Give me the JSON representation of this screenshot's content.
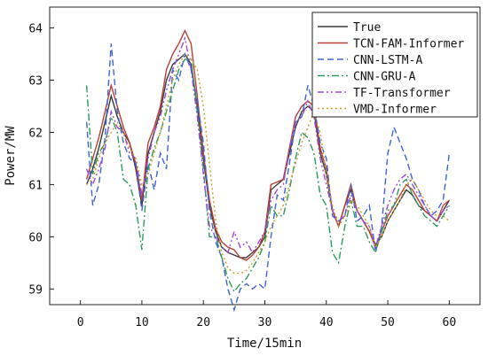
{
  "chart_data": {
    "type": "line",
    "title": "",
    "xlabel": "Time/15min",
    "ylabel": "Power/MW",
    "xlim": [
      -5,
      65
    ],
    "ylim": [
      58.7,
      64.4
    ],
    "xticks": [
      0,
      10,
      20,
      30,
      40,
      50,
      60
    ],
    "yticks": [
      59,
      60,
      61,
      62,
      63,
      64
    ],
    "legend_position": "top-right",
    "grid": false,
    "series": [
      {
        "name": "True",
        "color": "#3a3a3a",
        "dash": "solid",
        "x": [
          1,
          2,
          3,
          4,
          5,
          6,
          7,
          8,
          9,
          10,
          11,
          12,
          13,
          14,
          15,
          16,
          17,
          18,
          19,
          20,
          21,
          22,
          23,
          24,
          25,
          26,
          27,
          28,
          29,
          30,
          31,
          32,
          33,
          34,
          35,
          36,
          37,
          38,
          39,
          40,
          41,
          42,
          43,
          44,
          45,
          46,
          47,
          48,
          49,
          50,
          51,
          52,
          53,
          54,
          55,
          56,
          57,
          58,
          59,
          60
        ],
        "y": [
          61.0,
          61.3,
          61.7,
          62.2,
          62.7,
          62.3,
          62.0,
          61.8,
          61.3,
          60.6,
          61.6,
          62.0,
          62.4,
          63.0,
          63.3,
          63.4,
          63.5,
          63.3,
          62.5,
          61.5,
          60.6,
          60.1,
          59.8,
          59.7,
          59.65,
          59.6,
          59.6,
          59.7,
          59.8,
          60.0,
          60.9,
          61.0,
          61.1,
          61.6,
          62.1,
          62.4,
          62.5,
          62.4,
          61.6,
          61.2,
          60.5,
          60.2,
          60.6,
          60.9,
          60.5,
          60.3,
          60.1,
          59.85,
          60.0,
          60.3,
          60.5,
          60.7,
          60.9,
          60.8,
          60.6,
          60.5,
          60.4,
          60.3,
          60.5,
          60.7
        ]
      },
      {
        "name": "TCN-FAM-Informer",
        "color": "#b5413a",
        "dash": "solid",
        "x": [
          1,
          2,
          3,
          4,
          5,
          6,
          7,
          8,
          9,
          10,
          11,
          12,
          13,
          14,
          15,
          16,
          17,
          18,
          19,
          20,
          21,
          22,
          23,
          24,
          25,
          26,
          27,
          28,
          29,
          30,
          31,
          32,
          33,
          34,
          35,
          36,
          37,
          38,
          39,
          40,
          41,
          42,
          43,
          44,
          45,
          46,
          47,
          48,
          49,
          50,
          51,
          52,
          53,
          54,
          55,
          56,
          57,
          58,
          59,
          60
        ],
        "y": [
          61.1,
          61.5,
          61.9,
          62.4,
          62.9,
          62.5,
          62.1,
          61.8,
          61.4,
          60.7,
          61.8,
          62.1,
          62.5,
          63.2,
          63.5,
          63.7,
          63.95,
          63.7,
          62.7,
          61.6,
          60.7,
          60.15,
          59.9,
          59.8,
          59.75,
          59.6,
          59.55,
          59.65,
          59.8,
          60.1,
          61.0,
          61.05,
          61.1,
          61.7,
          62.3,
          62.5,
          62.6,
          62.5,
          61.7,
          61.3,
          60.5,
          60.2,
          60.6,
          61.0,
          60.5,
          60.3,
          60.1,
          59.8,
          60.1,
          60.4,
          60.6,
          60.8,
          61.0,
          60.9,
          60.7,
          60.5,
          60.4,
          60.3,
          60.6,
          60.7
        ]
      },
      {
        "name": "CNN-LSTM-A",
        "color": "#3f63d6",
        "dash": "dash",
        "x": [
          1,
          2,
          3,
          4,
          5,
          6,
          7,
          8,
          9,
          10,
          11,
          12,
          13,
          14,
          15,
          16,
          17,
          18,
          19,
          20,
          21,
          22,
          23,
          24,
          25,
          26,
          27,
          28,
          29,
          30,
          31,
          32,
          33,
          34,
          35,
          36,
          37,
          38,
          39,
          40,
          41,
          42,
          43,
          44,
          45,
          46,
          47,
          48,
          49,
          50,
          51,
          52,
          53,
          54,
          55,
          56,
          57,
          58,
          59,
          60
        ],
        "y": [
          62.2,
          60.6,
          61.0,
          61.9,
          63.7,
          62.4,
          61.8,
          61.5,
          61.4,
          60.5,
          61.4,
          60.9,
          61.6,
          61.3,
          63.2,
          63.0,
          63.5,
          63.2,
          62.6,
          61.8,
          60.5,
          59.9,
          59.6,
          59.0,
          58.6,
          59.0,
          59.1,
          59.0,
          59.1,
          59.0,
          60.0,
          60.8,
          60.7,
          61.4,
          62.2,
          62.3,
          62.9,
          62.5,
          61.8,
          61.5,
          60.4,
          60.3,
          60.4,
          61.0,
          60.3,
          60.4,
          60.6,
          59.7,
          60.2,
          61.6,
          62.1,
          61.8,
          61.5,
          61.1,
          60.9,
          60.6,
          60.4,
          60.5,
          60.7,
          61.6
        ]
      },
      {
        "name": "CNN-GRU-A",
        "color": "#2e9a5c",
        "dash": "dashdot",
        "x": [
          1,
          2,
          3,
          4,
          5,
          6,
          7,
          8,
          9,
          10,
          11,
          12,
          13,
          14,
          15,
          16,
          17,
          18,
          19,
          20,
          21,
          22,
          23,
          24,
          25,
          26,
          27,
          28,
          29,
          30,
          31,
          32,
          33,
          34,
          35,
          36,
          37,
          38,
          39,
          40,
          41,
          42,
          43,
          44,
          45,
          46,
          47,
          48,
          49,
          50,
          51,
          52,
          53,
          54,
          55,
          56,
          57,
          58,
          59,
          60
        ],
        "y": [
          62.9,
          61.2,
          61.6,
          61.8,
          62.3,
          62.0,
          61.1,
          61.0,
          60.6,
          59.75,
          61.3,
          61.7,
          62.0,
          62.4,
          62.8,
          63.2,
          63.4,
          63.4,
          62.4,
          61.3,
          60.0,
          60.0,
          59.6,
          59.2,
          58.95,
          59.1,
          59.2,
          59.4,
          59.6,
          59.9,
          60.6,
          60.4,
          60.4,
          60.9,
          61.5,
          62.0,
          61.9,
          61.6,
          60.8,
          60.6,
          59.7,
          59.5,
          60.2,
          60.7,
          60.2,
          60.2,
          59.9,
          59.7,
          60.1,
          60.5,
          60.6,
          61.0,
          61.1,
          60.8,
          60.6,
          60.4,
          60.3,
          60.2,
          60.4,
          60.6
        ]
      },
      {
        "name": "TF-Transformer",
        "color": "#9f48d6",
        "dash": "dashdotdot",
        "x": [
          1,
          2,
          3,
          4,
          5,
          6,
          7,
          8,
          9,
          10,
          11,
          12,
          13,
          14,
          15,
          16,
          17,
          18,
          19,
          20,
          21,
          22,
          23,
          24,
          25,
          26,
          27,
          28,
          29,
          30,
          31,
          32,
          33,
          34,
          35,
          36,
          37,
          38,
          39,
          40,
          41,
          42,
          43,
          44,
          45,
          46,
          47,
          48,
          49,
          50,
          51,
          52,
          53,
          54,
          55,
          56,
          57,
          58,
          59,
          60
        ],
        "y": [
          61.3,
          61.0,
          61.3,
          61.7,
          62.4,
          62.1,
          62.0,
          61.6,
          61.5,
          60.8,
          61.5,
          62.0,
          62.3,
          62.8,
          63.2,
          63.5,
          63.8,
          63.2,
          62.3,
          61.2,
          60.2,
          60.0,
          59.8,
          59.7,
          60.1,
          59.8,
          59.9,
          59.7,
          59.9,
          60.1,
          60.7,
          60.9,
          61.0,
          61.7,
          62.2,
          62.3,
          62.6,
          62.3,
          61.5,
          61.0,
          60.5,
          60.3,
          60.4,
          60.8,
          60.5,
          60.3,
          60.2,
          59.8,
          60.2,
          60.6,
          60.9,
          61.1,
          61.2,
          61.0,
          60.8,
          60.6,
          60.4,
          60.3,
          60.5,
          60.6
        ]
      },
      {
        "name": "VMD-Informer",
        "color": "#c9a020",
        "dash": "dot",
        "x": [
          1,
          2,
          3,
          4,
          5,
          6,
          7,
          8,
          9,
          10,
          11,
          12,
          13,
          14,
          15,
          16,
          17,
          18,
          19,
          20,
          21,
          22,
          23,
          24,
          25,
          26,
          27,
          28,
          29,
          30,
          31,
          32,
          33,
          34,
          35,
          36,
          37,
          38,
          39,
          40,
          41,
          42,
          43,
          44,
          45,
          46,
          47,
          48,
          49,
          50,
          51,
          52,
          53,
          54,
          55,
          56,
          57,
          58,
          59,
          60
        ],
        "y": [
          61.0,
          61.1,
          61.5,
          61.8,
          62.0,
          62.2,
          62.0,
          61.7,
          61.5,
          61.0,
          61.2,
          61.6,
          62.0,
          62.5,
          63.0,
          63.3,
          63.5,
          63.4,
          63.2,
          62.5,
          61.4,
          60.3,
          59.7,
          59.4,
          59.3,
          59.3,
          59.35,
          59.5,
          59.7,
          59.9,
          60.2,
          60.4,
          60.6,
          61.0,
          61.4,
          61.8,
          62.1,
          62.4,
          62.0,
          61.2,
          60.6,
          60.2,
          60.4,
          60.7,
          60.6,
          60.4,
          60.2,
          59.8,
          60.0,
          60.3,
          60.5,
          60.7,
          61.0,
          61.1,
          60.9,
          60.7,
          60.5,
          60.4,
          60.4,
          60.3
        ]
      }
    ]
  }
}
